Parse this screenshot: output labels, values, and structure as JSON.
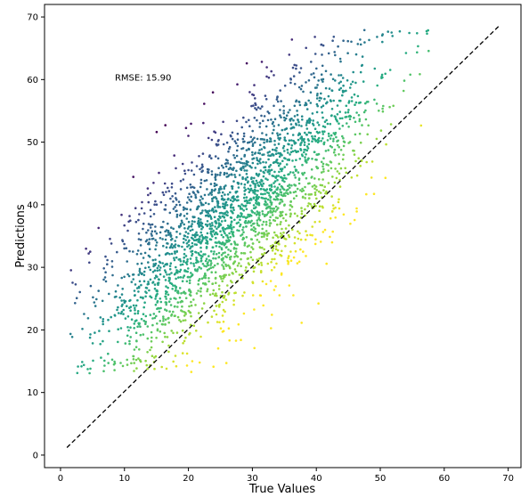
{
  "chart_data": {
    "type": "scatter",
    "xlabel": "True Values",
    "ylabel": "Predictions",
    "xlim": [
      -2.5,
      72
    ],
    "ylim": [
      -2,
      72
    ],
    "x_ticks": [
      0,
      10,
      20,
      30,
      40,
      50,
      60,
      70
    ],
    "y_ticks": [
      0,
      10,
      20,
      30,
      40,
      50,
      60,
      70
    ],
    "x_tick_labels": [
      "0",
      "10",
      "20",
      "30",
      "40",
      "50",
      "60",
      "70"
    ],
    "y_tick_labels": [
      "0",
      "10",
      "20",
      "30",
      "40",
      "50",
      "60",
      "70"
    ],
    "grid": false,
    "colormap": "viridis",
    "color_encodes": "residual (Predictions - True Values), low = yellow, high = purple",
    "marker_size": "small",
    "annotation": {
      "text": "RMSE: 15.90",
      "x": 8.5,
      "y": 59.8
    },
    "reference_line": {
      "style": "dashed",
      "color": "#000000",
      "x": [
        1,
        68.5
      ],
      "y": [
        1.2,
        68.5
      ]
    },
    "points_summary": {
      "x_range": [
        1,
        60
      ],
      "y_range": [
        13,
        69
      ],
      "approx_count": 2600
    }
  }
}
